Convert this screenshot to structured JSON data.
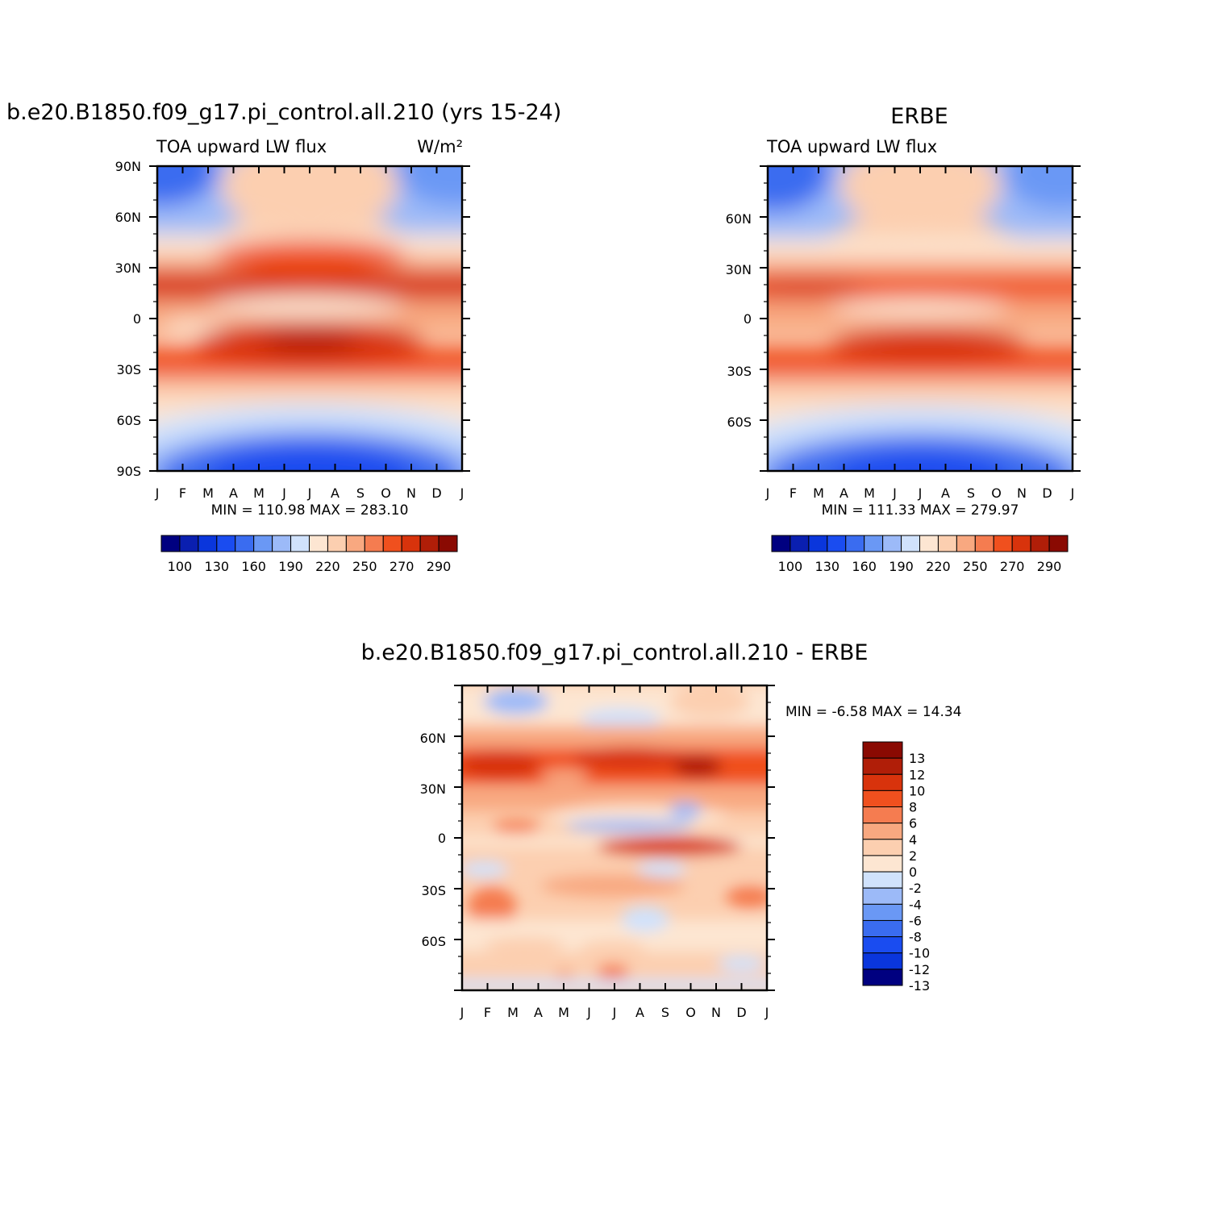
{
  "chart_data": [
    {
      "type": "heatmap",
      "title": "b.e20.B1850.f09_g17.pi_control.all.210 (yrs 15-24)",
      "subtitle_left": "TOA upward LW flux",
      "subtitle_right": "W/m²",
      "x_ticks": [
        "J",
        "F",
        "M",
        "A",
        "M",
        "J",
        "J",
        "A",
        "S",
        "O",
        "N",
        "D",
        "J"
      ],
      "y_ticks": [
        "90N",
        "60N",
        "30N",
        "0",
        "30S",
        "60S",
        "90S"
      ],
      "stats": "MIN = 110.98 MAX = 283.10",
      "colorbar_labels": [
        "100",
        "130",
        "160",
        "190",
        "220",
        "250",
        "270",
        "290"
      ]
    },
    {
      "type": "heatmap",
      "title": "ERBE",
      "subtitle_left": "TOA upward LW flux",
      "subtitle_right": "",
      "x_ticks": [
        "J",
        "F",
        "M",
        "A",
        "M",
        "J",
        "J",
        "A",
        "S",
        "O",
        "N",
        "D",
        "J"
      ],
      "y_ticks": [
        "60N",
        "30N",
        "0",
        "30S",
        "60S"
      ],
      "stats": "MIN = 111.33 MAX = 279.97",
      "colorbar_labels": [
        "100",
        "130",
        "160",
        "190",
        "220",
        "250",
        "270",
        "290"
      ]
    },
    {
      "type": "heatmap",
      "title": "b.e20.B1850.f09_g17.pi_control.all.210 - ERBE",
      "subtitle_left": "",
      "subtitle_right": "",
      "x_ticks": [
        "J",
        "F",
        "M",
        "A",
        "M",
        "J",
        "J",
        "A",
        "S",
        "O",
        "N",
        "D",
        "J"
      ],
      "y_ticks": [
        "60N",
        "30N",
        "0",
        "30S",
        "60S"
      ],
      "stats": "MIN = -6.58 MAX = 14.34",
      "colorbar_labels": [
        "13",
        "12",
        "10",
        "8",
        "6",
        "4",
        "2",
        "0",
        "-2",
        "-4",
        "-6",
        "-8",
        "-10",
        "-12",
        "-13"
      ]
    }
  ],
  "palette": [
    "#000080",
    "#0a1fb0",
    "#0a36dc",
    "#1a4cf0",
    "#3a6cf0",
    "#6a98f5",
    "#9cbaf8",
    "#d0e2fc",
    "#fde6d2",
    "#fccfb0",
    "#f8a880",
    "#f57c50",
    "#f0501e",
    "#d8330c",
    "#b01e08",
    "#8a0a02"
  ],
  "diff_palette": [
    "#8a0a02",
    "#b01e08",
    "#d8330c",
    "#f0501e",
    "#f57c50",
    "#f8a880",
    "#fccfb0",
    "#fde6d2",
    "#d0e2fc",
    "#9cbaf8",
    "#6a98f5",
    "#3a6cf0",
    "#1a4cf0",
    "#0a36dc",
    "#000080"
  ]
}
